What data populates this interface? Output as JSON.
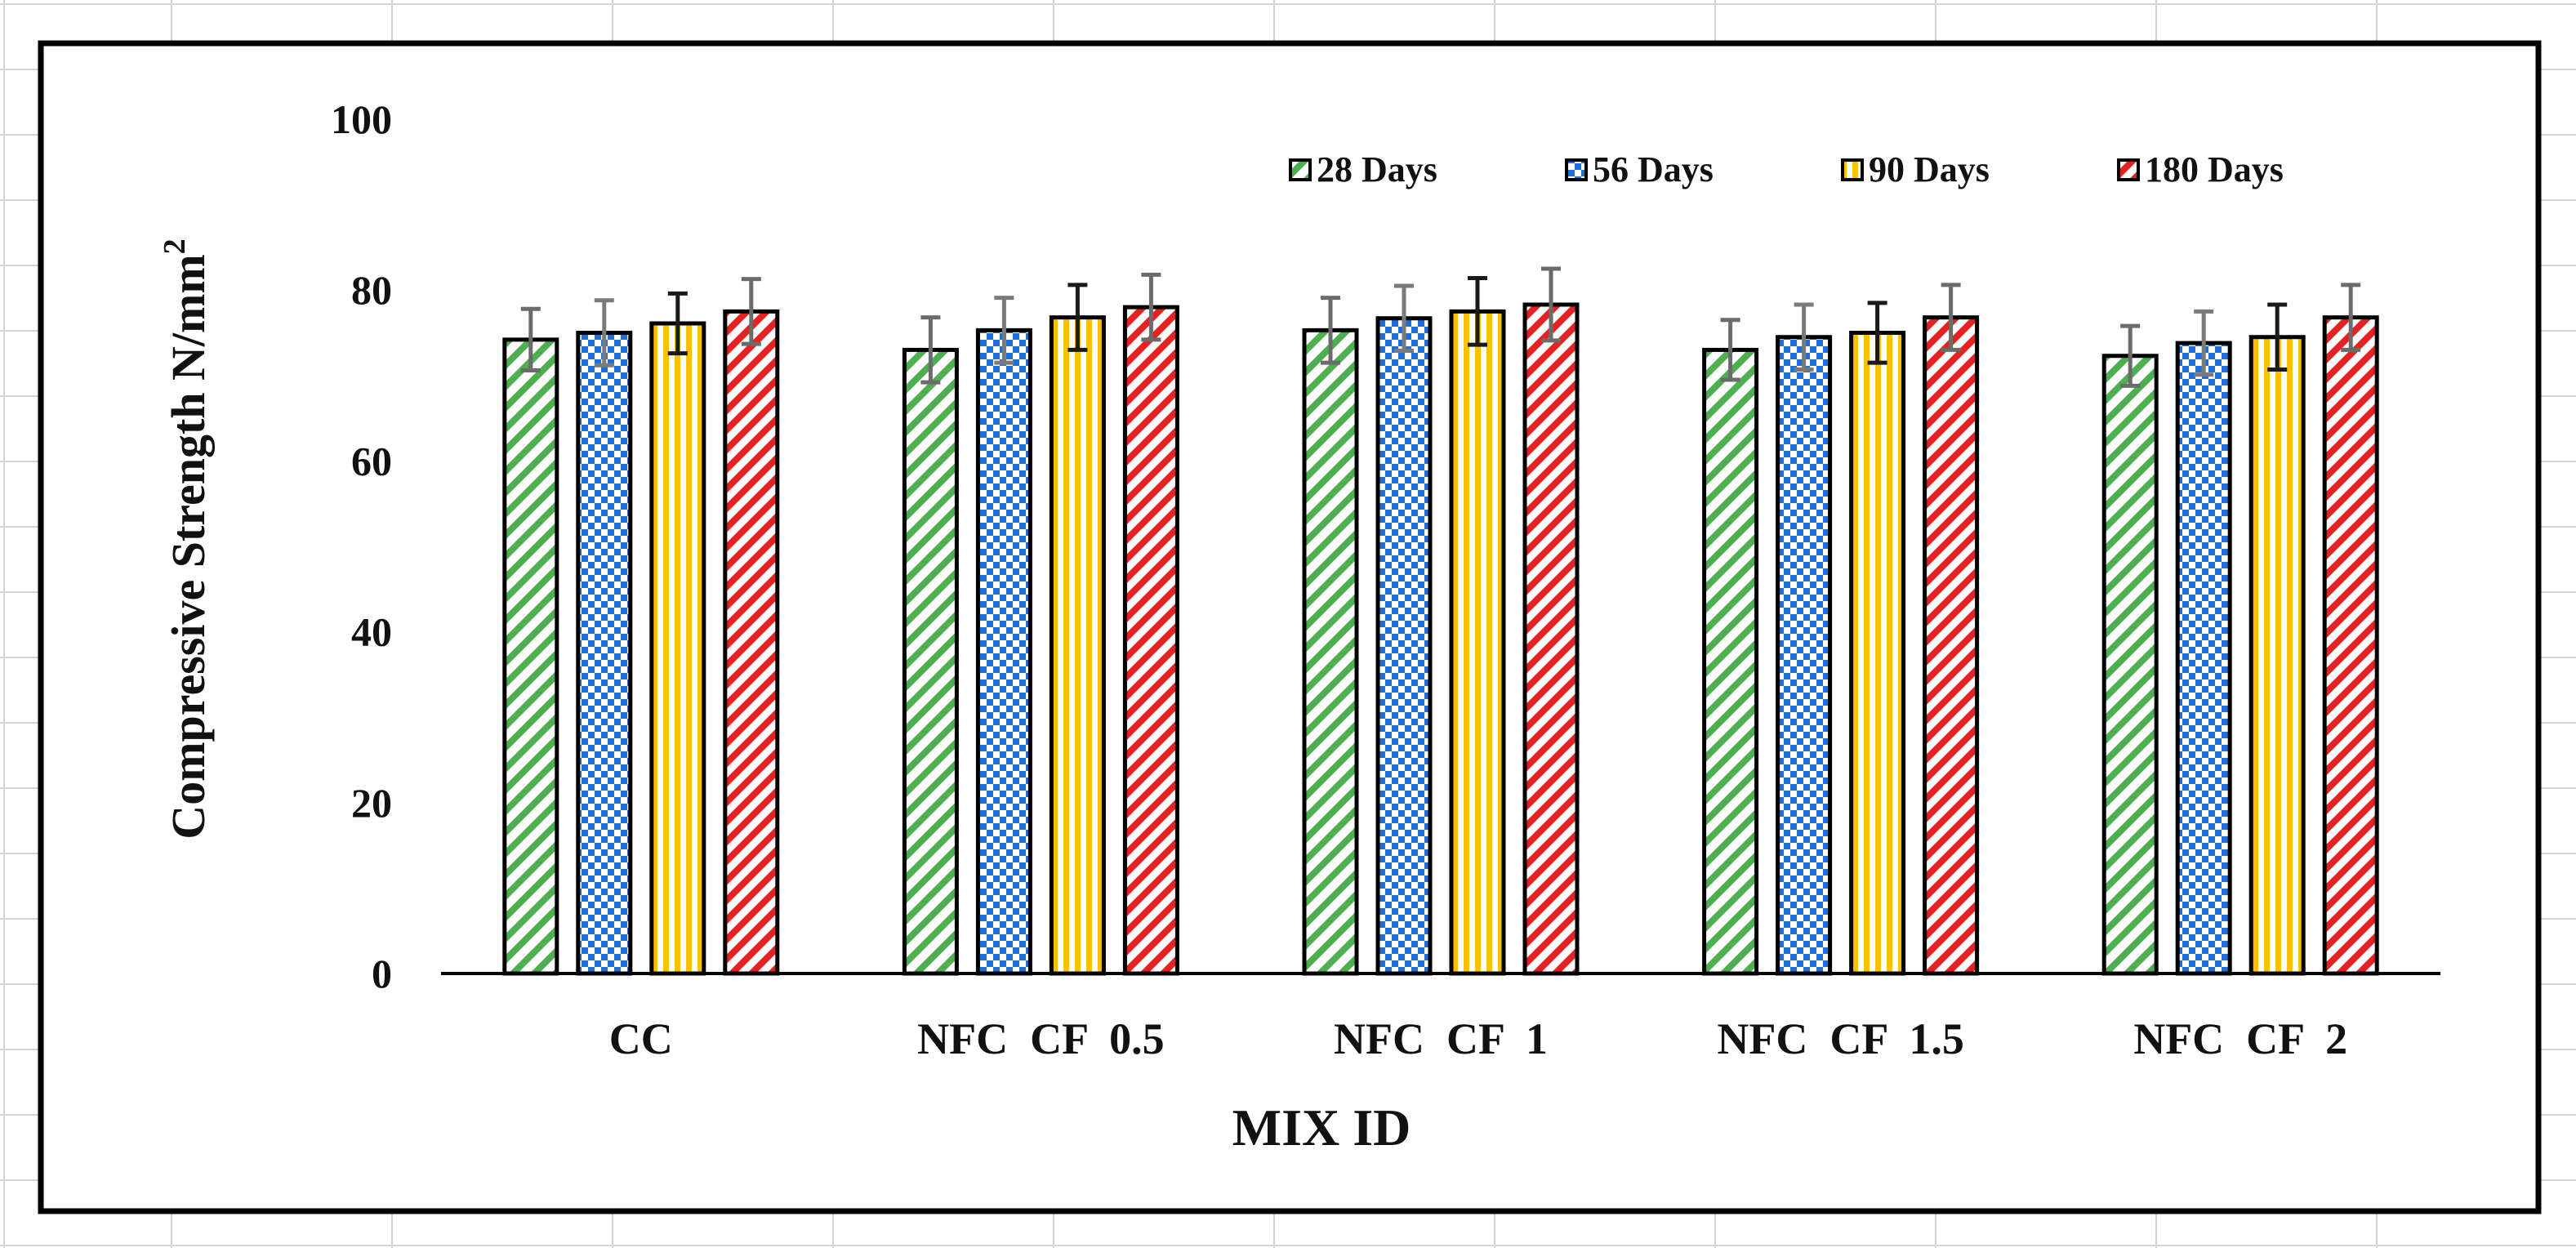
{
  "chart_data": {
    "type": "bar",
    "title": "",
    "xlabel": "MIX ID",
    "ylabel": "Compressive Strength N/mm",
    "ylabel_superscript": "2",
    "ylim": [
      0,
      100
    ],
    "yticks": [
      "0",
      "20",
      "40",
      "60",
      "80",
      "100"
    ],
    "grid": false,
    "legend_position": "top-right",
    "categories": [
      "CC",
      "NFC  CF  0.5",
      "NFC  CF  1",
      "NFC  CF  1.5",
      "NFC  CF  2"
    ],
    "series": [
      {
        "name": "28 Days",
        "color": "#4caf50",
        "pattern": "diagonal-stripes",
        "values": [
          74.2,
          73.0,
          75.3,
          73.0,
          72.3
        ],
        "errors": [
          3.6,
          3.8,
          3.8,
          3.5,
          3.5
        ]
      },
      {
        "name": "56 Days",
        "color": "#1e6fd9",
        "pattern": "checker",
        "values": [
          75.0,
          75.3,
          76.7,
          74.5,
          73.8
        ],
        "errors": [
          3.8,
          3.8,
          3.8,
          3.8,
          3.7
        ]
      },
      {
        "name": "90 Days",
        "color": "#ffc000",
        "pattern": "vertical-stripes",
        "values": [
          76.1,
          76.8,
          77.5,
          75.0,
          74.5
        ],
        "errors": [
          3.5,
          3.8,
          3.9,
          3.5,
          3.8
        ]
      },
      {
        "name": "180 Days",
        "color": "#e52222",
        "pattern": "diagonal-stripes",
        "values": [
          77.5,
          78.0,
          78.3,
          76.8,
          76.8
        ],
        "errors": [
          3.8,
          3.8,
          4.2,
          3.8,
          3.8
        ]
      }
    ]
  }
}
